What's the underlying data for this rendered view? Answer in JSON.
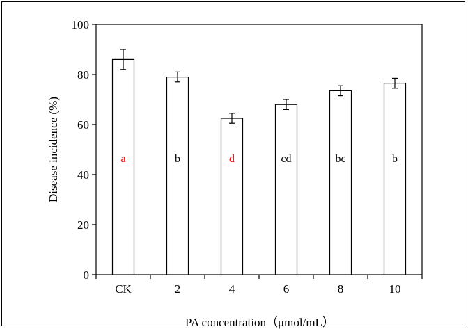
{
  "chart_data": {
    "type": "bar",
    "xlabel": "PA concentration（μmol/mL）",
    "ylabel": "Disease  incidence  (%)",
    "ylim": [
      0,
      100
    ],
    "yticks": [
      0,
      20,
      40,
      60,
      80,
      100
    ],
    "grid": false,
    "categories": [
      "CK",
      "2",
      "4",
      "6",
      "8",
      "10"
    ],
    "values": [
      86,
      79,
      62.5,
      68,
      73.5,
      76.5
    ],
    "errors": [
      4,
      2,
      2,
      2,
      2,
      2
    ],
    "letters": [
      "a",
      "b",
      "d",
      "cd",
      "bc",
      "b"
    ],
    "letter_colors": [
      "#ff0000",
      "#000000",
      "#ff0000",
      "#000000",
      "#000000",
      "#000000"
    ],
    "bar_fill": "#ffffff",
    "bar_stroke": "#000000"
  }
}
